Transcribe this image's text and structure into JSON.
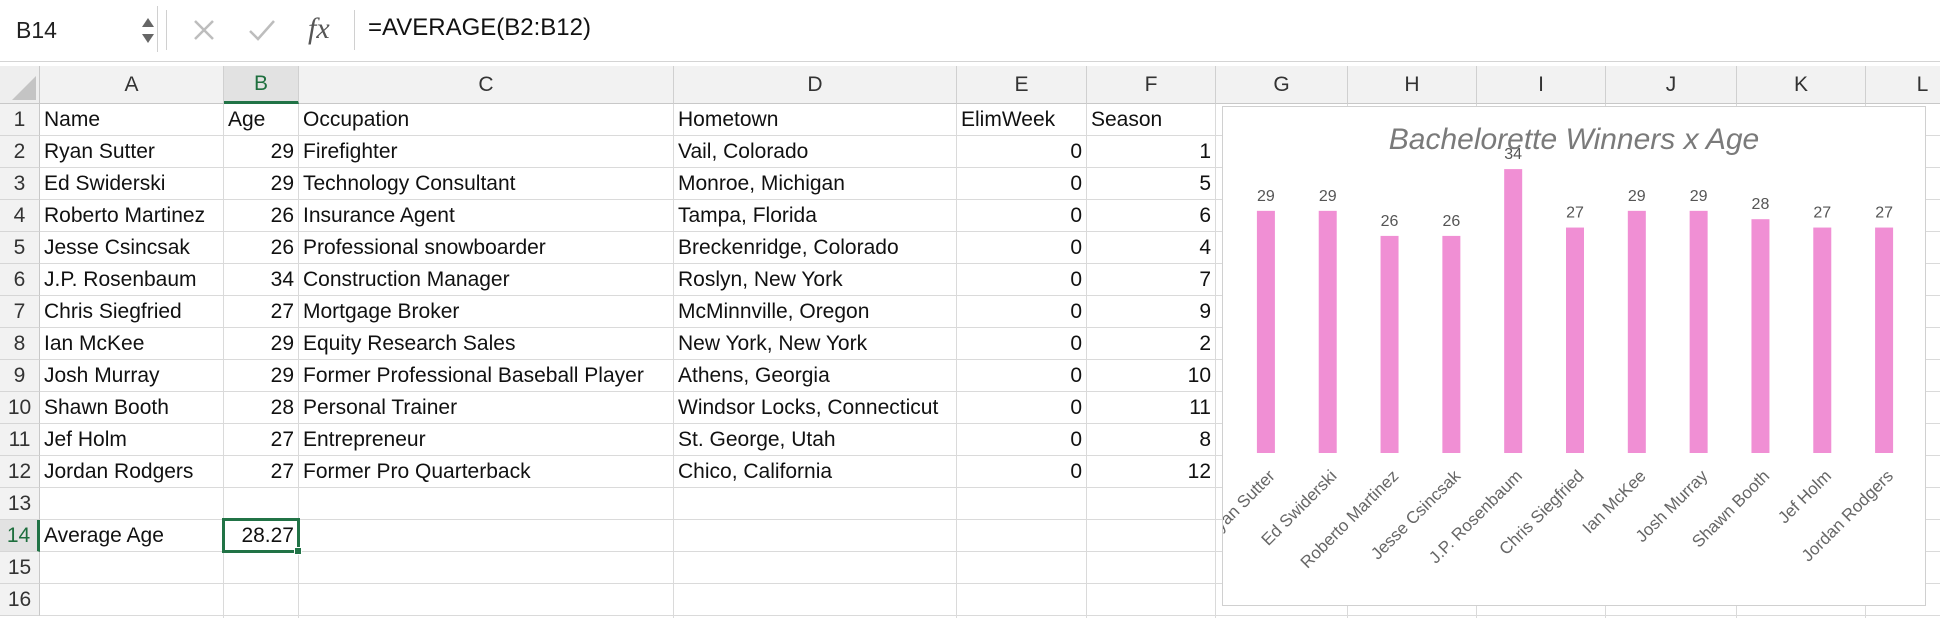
{
  "formula_bar": {
    "name_box": "B14",
    "cancel_icon": "close-icon",
    "enter_icon": "check-icon",
    "fx_label": "fx",
    "formula": "=AVERAGE(B2:B12)"
  },
  "columns": [
    "A",
    "B",
    "C",
    "D",
    "E",
    "F",
    "G",
    "H",
    "I",
    "J",
    "K",
    "L"
  ],
  "rows": [
    "1",
    "2",
    "3",
    "4",
    "5",
    "6",
    "7",
    "8",
    "9",
    "10",
    "11",
    "12",
    "13",
    "14",
    "15",
    "16"
  ],
  "header_row": {
    "name": "Name",
    "age": "Age",
    "occupation": "Occupation",
    "hometown": "Hometown",
    "elimweek": "ElimWeek",
    "season": "Season"
  },
  "data_rows": [
    {
      "name": "Ryan Sutter",
      "age": "29",
      "occupation": "Firefighter",
      "hometown": "Vail, Colorado",
      "elimweek": "0",
      "season": "1"
    },
    {
      "name": "Ed Swiderski",
      "age": "29",
      "occupation": "Technology Consultant",
      "hometown": "Monroe, Michigan",
      "elimweek": "0",
      "season": "5"
    },
    {
      "name": "Roberto Martinez",
      "age": "26",
      "occupation": "Insurance Agent",
      "hometown": "Tampa, Florida",
      "elimweek": "0",
      "season": "6"
    },
    {
      "name": "Jesse Csincsak",
      "age": "26",
      "occupation": "Professional snowboarder",
      "hometown": "Breckenridge, Colorado",
      "elimweek": "0",
      "season": "4"
    },
    {
      "name": "J.P. Rosenbaum",
      "age": "34",
      "occupation": "Construction Manager",
      "hometown": "Roslyn, New York",
      "elimweek": "0",
      "season": "7"
    },
    {
      "name": "Chris Siegfried",
      "age": "27",
      "occupation": "Mortgage Broker",
      "hometown": "McMinnville, Oregon",
      "elimweek": "0",
      "season": "9"
    },
    {
      "name": "Ian McKee",
      "age": "29",
      "occupation": "Equity Research Sales",
      "hometown": "New York, New York",
      "elimweek": "0",
      "season": "2"
    },
    {
      "name": "Josh Murray",
      "age": "29",
      "occupation": "Former Professional Baseball Player",
      "hometown": "Athens, Georgia",
      "elimweek": "0",
      "season": "10"
    },
    {
      "name": "Shawn Booth",
      "age": "28",
      "occupation": "Personal Trainer",
      "hometown": "Windsor Locks, Connecticut",
      "elimweek": "0",
      "season": "11"
    },
    {
      "name": "Jef Holm",
      "age": "27",
      "occupation": "Entrepreneur",
      "hometown": "St. George, Utah",
      "elimweek": "0",
      "season": "8"
    },
    {
      "name": "Jordan Rodgers",
      "age": "27",
      "occupation": "Former Pro Quarterback",
      "hometown": "Chico, California",
      "elimweek": "0",
      "season": "12"
    }
  ],
  "summary": {
    "label": "Average Age",
    "value": "28.27"
  },
  "colors": {
    "bar": "#f08fd4",
    "selection": "#217346",
    "title": "#7a7a7a"
  },
  "chart_data": {
    "type": "bar",
    "title": "Bachelorette Winners x Age",
    "categories": [
      "Ryan Sutter",
      "Ed Swiderski",
      "Roberto Martinez",
      "Jesse Csincsak",
      "J.P. Rosenbaum",
      "Chris Siegfried",
      "Ian McKee",
      "Josh Murray",
      "Shawn Booth",
      "Jef Holm",
      "Jordan Rodgers"
    ],
    "values": [
      29,
      29,
      26,
      26,
      34,
      27,
      29,
      29,
      28,
      27,
      27
    ],
    "data_labels": true,
    "xlabel": "",
    "ylabel": "",
    "grid": false
  }
}
